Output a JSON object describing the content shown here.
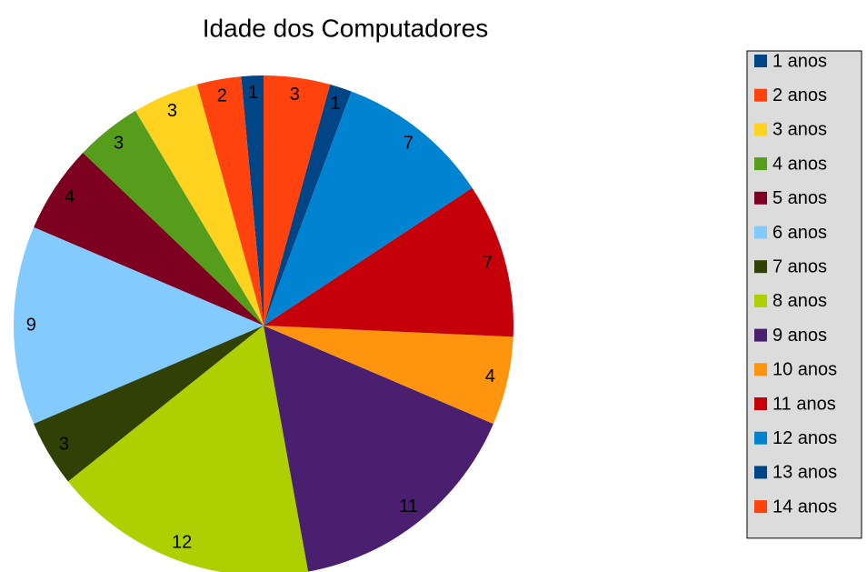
{
  "chart_data": {
    "type": "pie",
    "title": "Idade dos Computadores",
    "categories": [
      "1 anos",
      "2 anos",
      "3 anos",
      "4 anos",
      "5 anos",
      "6 anos",
      "7 anos",
      "8 anos",
      "9 anos",
      "10 anos",
      "11 anos",
      "12 anos",
      "13 anos",
      "14 anos"
    ],
    "values": [
      1,
      2,
      3,
      3,
      4,
      9,
      3,
      12,
      11,
      4,
      7,
      7,
      1,
      3
    ],
    "colors": [
      "#004586",
      "#ff420e",
      "#ffd320",
      "#579d1c",
      "#7e0021",
      "#83caff",
      "#314004",
      "#aecf00",
      "#4b1f6f",
      "#ff950e",
      "#c5000b",
      "#0084d1",
      "#004586",
      "#ff420e"
    ],
    "legend": "right"
  }
}
